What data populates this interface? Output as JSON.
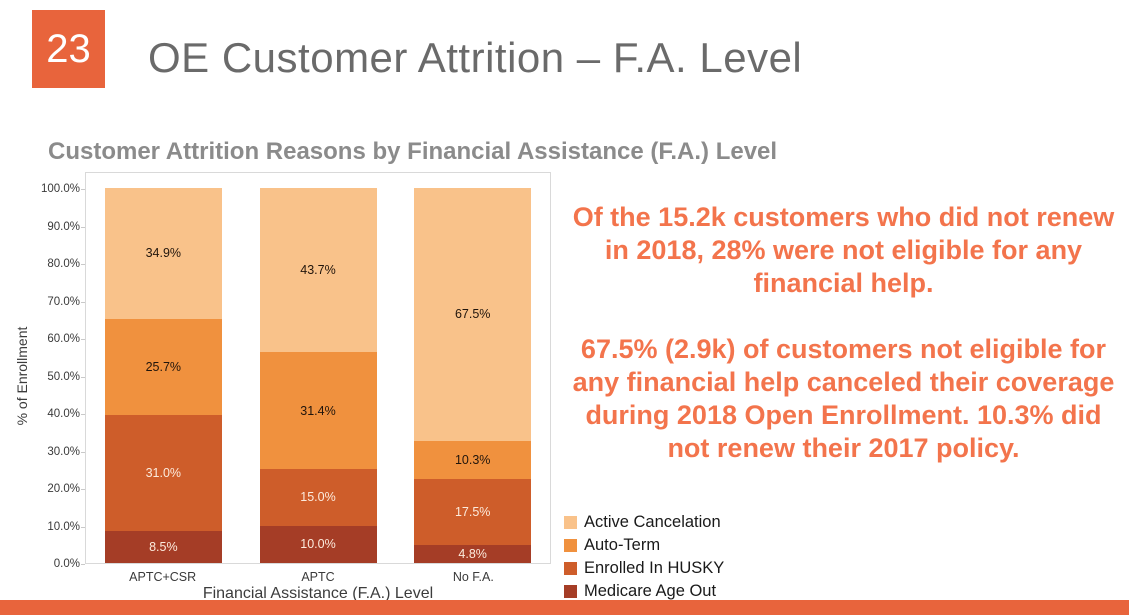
{
  "slide": {
    "number": "23",
    "title": "OE Customer Attrition – F.A. Level",
    "accent_color": "#e8643c"
  },
  "chart_title": "Customer Attrition Reasons by Financial Assistance (F.A.) Level",
  "callout": {
    "color": "#f3744c",
    "paragraphs": [
      "Of the 15.2k customers who did not renew in 2018, 28% were not eligible for any financial help.",
      "67.5% (2.9k) of customers not eligible for any financial help canceled their coverage during 2018 Open Enrollment. 10.3% did not renew their 2017 policy."
    ]
  },
  "chart_data": {
    "type": "bar",
    "subtype": "stacked-100",
    "title": "Customer Attrition Reasons by Financial Assistance (F.A.) Level",
    "xlabel": "Financial Assistance (F.A.) Level",
    "ylabel": "% of Enrollment",
    "ylim": [
      0,
      100
    ],
    "ytick_step": 10,
    "ytick_labels": [
      "0.0%",
      "10.0%",
      "20.0%",
      "30.0%",
      "40.0%",
      "50.0%",
      "60.0%",
      "70.0%",
      "80.0%",
      "90.0%",
      "100.0%"
    ],
    "categories": [
      "APTC+CSR",
      "APTC",
      "No F.A."
    ],
    "series": [
      {
        "name": "Medicare Age Out",
        "color": "#a53d26",
        "label_color": "#fcebdd",
        "values": [
          8.5,
          10.0,
          4.8
        ]
      },
      {
        "name": "Enrolled In HUSKY",
        "color": "#ce5d2a",
        "label_color": "#fcebdd",
        "values": [
          31.0,
          15.0,
          17.5
        ]
      },
      {
        "name": "Auto-Term",
        "color": "#f0913e",
        "label_color": "#21150c",
        "values": [
          25.7,
          31.4,
          10.3
        ]
      },
      {
        "name": "Active Cancelation",
        "color": "#f9c28a",
        "label_color": "#21150c",
        "values": [
          34.9,
          43.7,
          67.5
        ]
      }
    ],
    "legend_order": [
      "Active Cancelation",
      "Auto-Term",
      "Enrolled In HUSKY",
      "Medicare Age Out"
    ],
    "legend_position": "bottom-right",
    "grid": false,
    "value_label_format": "0.0%"
  }
}
